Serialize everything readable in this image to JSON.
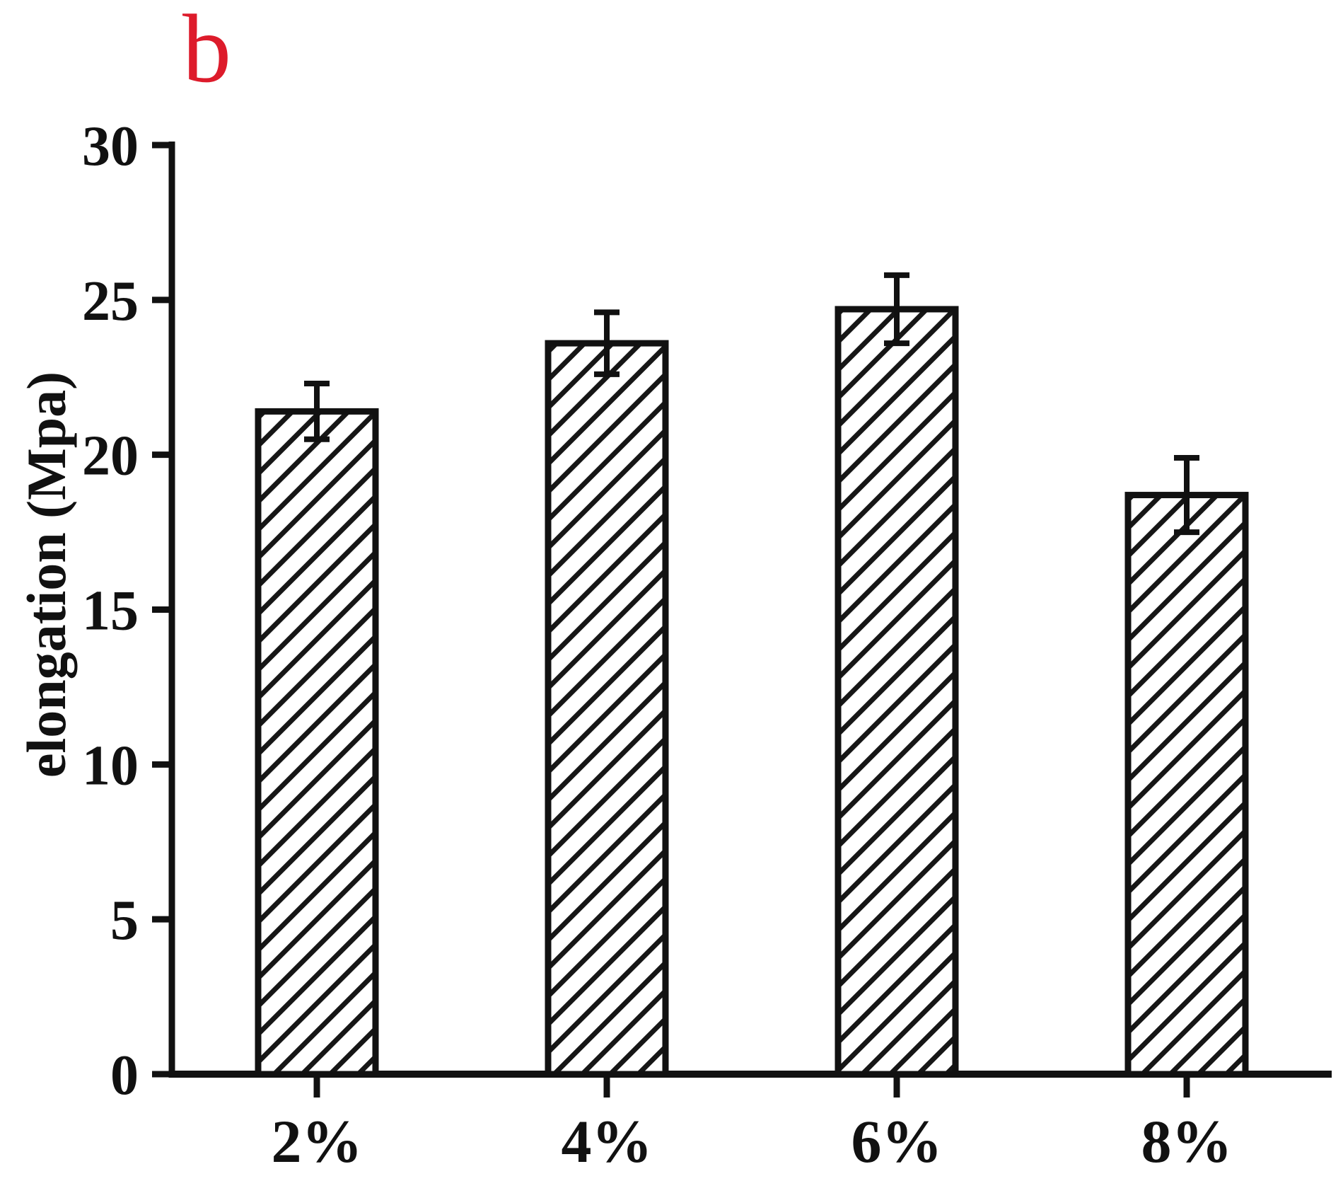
{
  "figure_label": "b",
  "figure_label_color": "#dd1b2b",
  "chart_data": {
    "type": "bar",
    "title": "",
    "xlabel": "",
    "ylabel": "elongation (Mpa)",
    "categories": [
      "2%",
      "4%",
      "6%",
      "8%"
    ],
    "values": [
      21.4,
      23.6,
      24.7,
      18.7
    ],
    "errors": [
      0.9,
      1.0,
      1.1,
      1.2
    ],
    "ylim": [
      0,
      30
    ],
    "yticks": [
      0,
      5,
      10,
      15,
      20,
      25,
      30
    ],
    "grid": false,
    "legend_position": "none",
    "bar_pattern": "diagonal-hatch",
    "hatch_color": "#161616",
    "bar_background": "#ffffff",
    "axis_color": "#111111"
  }
}
